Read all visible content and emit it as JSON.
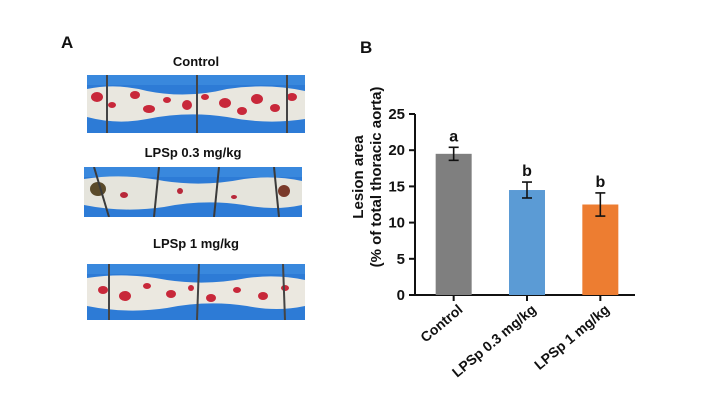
{
  "panel_a": {
    "label": "A",
    "photos": [
      {
        "caption": "Control"
      },
      {
        "caption": "LPSp 0.3 mg/kg"
      },
      {
        "caption": "LPSp 1 mg/kg"
      }
    ]
  },
  "panel_b": {
    "label": "B"
  },
  "colors": {
    "photo_bg": "#2d7bd6",
    "tissue": "#e9e7df",
    "lesion": "#c8283a",
    "axis": "#111111"
  },
  "chart_data": {
    "type": "bar",
    "categories": [
      "Control",
      "LPSp 0.3 mg/kg",
      "LPSp 1 mg/kg"
    ],
    "values": [
      19.5,
      14.5,
      12.5
    ],
    "errors": [
      0.9,
      1.1,
      1.6
    ],
    "significance_labels": [
      "a",
      "b",
      "b"
    ],
    "bar_colors": [
      "#7f7f7f",
      "#5b9bd5",
      "#ed7d31"
    ],
    "ylabel_line1": "Lesion area",
    "ylabel_line2": "(% of total thoracic aorta)",
    "yticks": [
      0,
      5,
      10,
      15,
      20,
      25
    ],
    "ylim": [
      0,
      25
    ]
  }
}
